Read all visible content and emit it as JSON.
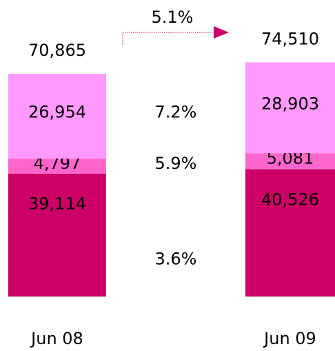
{
  "chart_data": {
    "type": "stacked_bar",
    "categories": [
      "Jun 08",
      "Jun 09"
    ],
    "series": [
      {
        "color": "#cc0066",
        "label_color": "#ffffff",
        "values": [
          39114,
          40526
        ],
        "value_labels": [
          "39,114",
          "40,526"
        ],
        "growth": "3.6%"
      },
      {
        "color": "#ff66cc",
        "label_color": "#000000",
        "values": [
          4797,
          5081
        ],
        "value_labels": [
          "4,797",
          "5,081"
        ],
        "growth": "5.9%"
      },
      {
        "color": "#ff99ff",
        "label_color": "#000000",
        "values": [
          26954,
          28903
        ],
        "value_labels": [
          "26,954",
          "28,903"
        ],
        "growth": "7.2%"
      }
    ],
    "totals": [
      70865,
      74510
    ],
    "total_labels": [
      "70,865",
      "74,510"
    ],
    "total_growth": "5.1%"
  }
}
